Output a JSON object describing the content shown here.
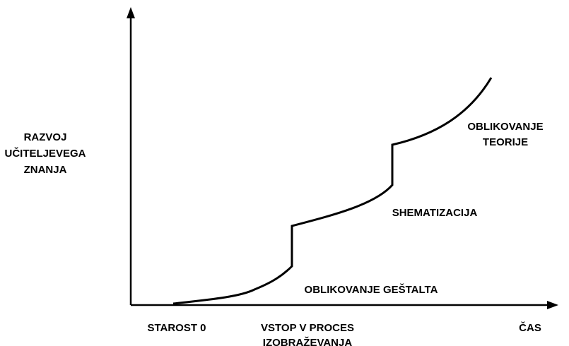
{
  "y_axis_label": [
    "RAZVOJ",
    "UČITELJEVEGA",
    "ZNANJA"
  ],
  "x_labels": {
    "start": "STAROST 0",
    "entry": [
      "VSTOP V PROCES",
      "IZOBRAŽEVANJA"
    ],
    "end": "ČAS"
  },
  "phases": {
    "gestalt": "OBLIKOVANJE GEŠTALTA",
    "schema": "SHEMATIZACIJA",
    "theory": [
      "OBLIKOVANJE",
      "TEORIJE"
    ]
  }
}
